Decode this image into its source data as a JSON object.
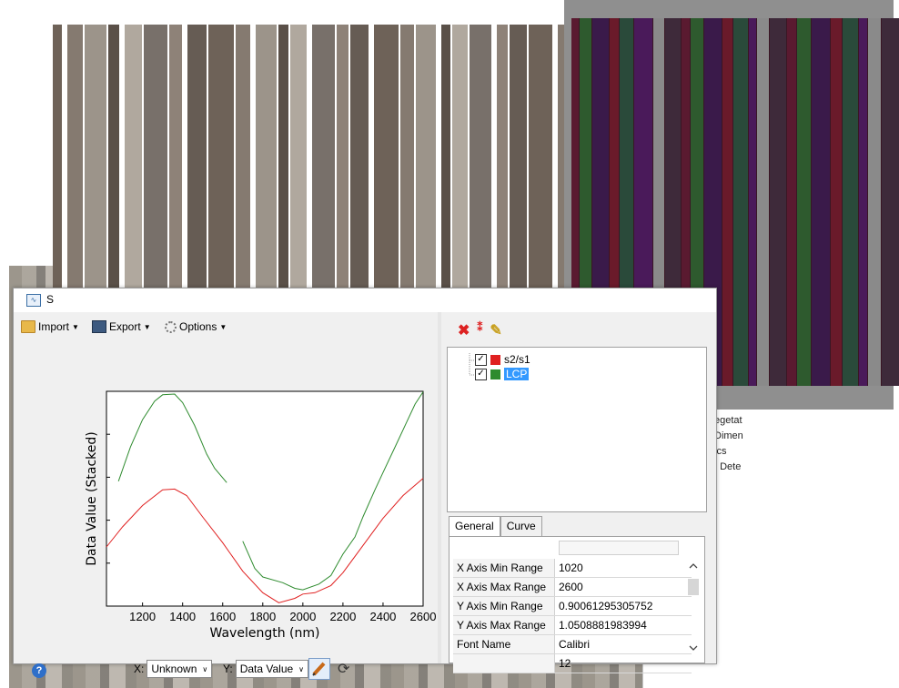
{
  "background_panel": {
    "lines": [
      "egetat",
      "Dimen",
      "ics",
      "t Dete"
    ]
  },
  "window": {
    "title": "S",
    "toolbar": {
      "import_label": "Import",
      "export_label": "Export",
      "options_label": "Options"
    },
    "bottom_bar": {
      "x_label": "X:",
      "x_value": "Unknown",
      "y_label": "Y:",
      "y_value": "Data Value",
      "help_glyph": "?"
    }
  },
  "chart_data": {
    "type": "line",
    "xlabel": "Wavelength (nm)",
    "ylabel": "Data Value (Stacked)",
    "xlim": [
      1020,
      2600
    ],
    "ylim": [
      0.90061295305752,
      1.0508881983994
    ],
    "x_ticks": [
      1200,
      1400,
      1600,
      1800,
      2000,
      2200,
      2400,
      2600
    ],
    "series": [
      {
        "name": "s2/s1",
        "color": "#e02020",
        "segments": [
          [
            [
              1020,
              0.942
            ],
            [
              1100,
              0.956
            ],
            [
              1200,
              0.971
            ],
            [
              1300,
              0.982
            ],
            [
              1360,
              0.9825
            ],
            [
              1420,
              0.978
            ],
            [
              1500,
              0.963
            ],
            [
              1600,
              0.945
            ],
            [
              1700,
              0.925
            ],
            [
              1800,
              0.91
            ],
            [
              1880,
              0.903
            ],
            [
              1960,
              0.906
            ],
            [
              2000,
              0.909
            ],
            [
              2060,
              0.91
            ],
            [
              2140,
              0.915
            ],
            [
              2200,
              0.924
            ],
            [
              2300,
              0.943
            ],
            [
              2400,
              0.962
            ],
            [
              2500,
              0.978
            ],
            [
              2600,
              0.99
            ]
          ]
        ]
      },
      {
        "name": "LCP",
        "color": "#2e8b2e",
        "segments": [
          [
            [
              1080,
              0.988
            ],
            [
              1140,
              1.012
            ],
            [
              1200,
              1.031
            ],
            [
              1260,
              1.044
            ],
            [
              1300,
              1.0485
            ],
            [
              1360,
              1.049
            ],
            [
              1400,
              1.043
            ],
            [
              1460,
              1.027
            ],
            [
              1520,
              1.007
            ],
            [
              1560,
              0.997
            ],
            [
              1620,
              0.987
            ]
          ],
          [
            [
              1700,
              0.946
            ],
            [
              1760,
              0.927
            ],
            [
              1800,
              0.921
            ],
            [
              1900,
              0.917
            ],
            [
              1960,
              0.913
            ],
            [
              2000,
              0.912
            ],
            [
              2080,
              0.916
            ],
            [
              2140,
              0.922
            ],
            [
              2200,
              0.937
            ],
            [
              2260,
              0.949
            ],
            [
              2300,
              0.963
            ],
            [
              2360,
              0.982
            ],
            [
              2400,
              0.994
            ],
            [
              2460,
              1.012
            ],
            [
              2520,
              1.03
            ],
            [
              2560,
              1.042
            ],
            [
              2600,
              1.0505
            ]
          ]
        ]
      }
    ],
    "legend": "right panel tree",
    "grid": false
  },
  "tree": {
    "items": [
      {
        "label": "s2/s1",
        "color": "#e02020",
        "checked": true,
        "selected": false
      },
      {
        "label": "LCP",
        "color": "#2e8b2e",
        "checked": true,
        "selected": true
      }
    ]
  },
  "tabs": [
    {
      "label": "General",
      "active": true
    },
    {
      "label": "Curve",
      "active": false
    }
  ],
  "properties": [
    {
      "name": "X Axis Min Range",
      "value": "1020"
    },
    {
      "name": "X Axis Max Range",
      "value": "2600"
    },
    {
      "name": "Y Axis Min Range",
      "value": "0.90061295305752"
    },
    {
      "name": "Y Axis Max Range",
      "value": "1.0508881983994"
    },
    {
      "name": "Font Name",
      "value": "Calibri"
    },
    {
      "name": "",
      "value": "12"
    }
  ]
}
